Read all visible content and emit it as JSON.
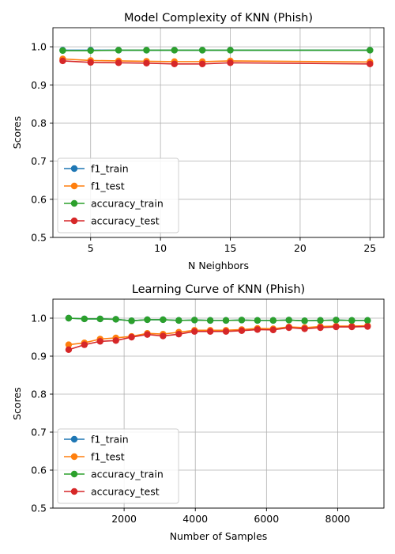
{
  "chart_data": [
    {
      "type": "line",
      "title": "Model Complexity of KNN (Phish)",
      "xlabel": "N Neighbors",
      "ylabel": "Scores",
      "xlim": [
        2.3,
        26.0
      ],
      "ylim": [
        0.5,
        1.05
      ],
      "xticks": [
        5,
        10,
        15,
        20,
        25
      ],
      "yticks": [
        0.5,
        0.6,
        0.7,
        0.8,
        0.9,
        1.0
      ],
      "grid": true,
      "legend_position": "lower-left",
      "x": [
        3,
        5,
        7,
        9,
        11,
        13,
        15,
        25
      ],
      "series": [
        {
          "name": "f1_train",
          "color": "#1f77b4",
          "values": [
            0.991,
            0.991,
            0.991,
            0.991,
            0.991,
            0.991,
            0.991,
            0.991
          ]
        },
        {
          "name": "f1_test",
          "color": "#ff7f0e",
          "values": [
            0.968,
            0.964,
            0.963,
            0.962,
            0.961,
            0.961,
            0.963,
            0.96
          ]
        },
        {
          "name": "accuracy_train",
          "color": "#2ca02c",
          "values": [
            0.99,
            0.99,
            0.991,
            0.991,
            0.991,
            0.991,
            0.991,
            0.991
          ]
        },
        {
          "name": "accuracy_test",
          "color": "#d62728",
          "values": [
            0.963,
            0.959,
            0.958,
            0.957,
            0.955,
            0.955,
            0.958,
            0.955
          ]
        }
      ]
    },
    {
      "type": "line",
      "title": "Learning Curve of KNN (Phish)",
      "xlabel": "Number of Samples",
      "ylabel": "Scores",
      "xlim": [
        0,
        9300
      ],
      "ylim": [
        0.5,
        1.05
      ],
      "xticks": [
        2000,
        4000,
        6000,
        8000
      ],
      "yticks": [
        0.5,
        0.6,
        0.7,
        0.8,
        0.9,
        1.0
      ],
      "grid": true,
      "legend_position": "lower-left",
      "x": [
        442,
        884,
        1326,
        1768,
        2210,
        2652,
        3094,
        3536,
        3978,
        4420,
        4862,
        5304,
        5746,
        6188,
        6630,
        7072,
        7514,
        7956,
        8398,
        8840
      ],
      "series": [
        {
          "name": "f1_train",
          "color": "#1f77b4",
          "values": [
            1.0,
            0.998,
            0.998,
            0.997,
            0.993,
            0.996,
            0.996,
            0.994,
            0.995,
            0.994,
            0.994,
            0.995,
            0.994,
            0.994,
            0.995,
            0.993,
            0.994,
            0.995,
            0.994,
            0.994
          ]
        },
        {
          "name": "f1_test",
          "color": "#ff7f0e",
          "values": [
            0.93,
            0.935,
            0.945,
            0.948,
            0.952,
            0.96,
            0.958,
            0.963,
            0.968,
            0.968,
            0.968,
            0.97,
            0.973,
            0.972,
            0.977,
            0.975,
            0.978,
            0.979,
            0.979,
            0.98
          ]
        },
        {
          "name": "accuracy_train",
          "color": "#2ca02c",
          "values": [
            1.0,
            0.998,
            0.998,
            0.997,
            0.993,
            0.996,
            0.996,
            0.994,
            0.995,
            0.994,
            0.994,
            0.995,
            0.994,
            0.994,
            0.995,
            0.993,
            0.994,
            0.995,
            0.994,
            0.994
          ]
        },
        {
          "name": "accuracy_test",
          "color": "#d62728",
          "values": [
            0.917,
            0.93,
            0.939,
            0.941,
            0.95,
            0.957,
            0.953,
            0.958,
            0.965,
            0.965,
            0.965,
            0.967,
            0.97,
            0.969,
            0.975,
            0.972,
            0.975,
            0.977,
            0.977,
            0.978
          ]
        }
      ]
    }
  ]
}
